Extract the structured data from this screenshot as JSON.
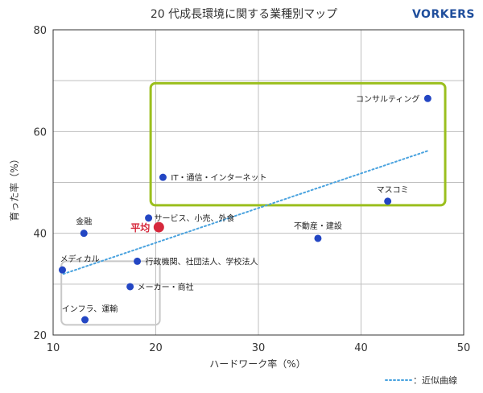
{
  "brand": "VORKERS",
  "chart_data": {
    "type": "scatter",
    "title": "20 代成長環境に関する業種別マップ",
    "xlabel": "ハードワーク率（%）",
    "ylabel": "育った率（%）",
    "xlim": [
      10,
      50
    ],
    "ylim": [
      20,
      80
    ],
    "x_ticks": [
      10,
      20,
      30,
      40,
      50
    ],
    "y_ticks": [
      20,
      40,
      60,
      80
    ],
    "grid": true,
    "points": [
      {
        "label": "コンサルティング",
        "x": 46.5,
        "y": 66.5
      },
      {
        "label": "IT・通信・インターネット",
        "x": 20.7,
        "y": 51
      },
      {
        "label": "マスコミ",
        "x": 42.6,
        "y": 46.3
      },
      {
        "label": "サービス、小売、外食",
        "x": 19.3,
        "y": 43
      },
      {
        "label": "金融",
        "x": 13,
        "y": 40
      },
      {
        "label": "不動産・建設",
        "x": 35.8,
        "y": 39
      },
      {
        "label": "行政機関、社団法人、学校法人",
        "x": 18.2,
        "y": 34.5
      },
      {
        "label": "メディカル",
        "x": 10.9,
        "y": 32.8
      },
      {
        "label": "メーカー・商社",
        "x": 17.5,
        "y": 29.5
      },
      {
        "label": "インフラ、運輸",
        "x": 13.1,
        "y": 23
      }
    ],
    "average": {
      "label": "平均",
      "x": 20.3,
      "y": 41.2
    },
    "trendline": {
      "label": "：近似曲線",
      "x": [
        11,
        46.5
      ],
      "y": [
        32,
        56.2
      ]
    },
    "highlight_boxes": [
      {
        "color": "#9bbf1e",
        "x": [
          19.5,
          48.2
        ],
        "y": [
          45.5,
          69.5
        ]
      },
      {
        "color": "#c8c8c8",
        "x": [
          10.8,
          20.4
        ],
        "y": [
          22,
          34.5
        ]
      }
    ],
    "colors": {
      "point": "#2346c3",
      "average": "#d6283c",
      "trendline": "#4aa3df"
    }
  }
}
